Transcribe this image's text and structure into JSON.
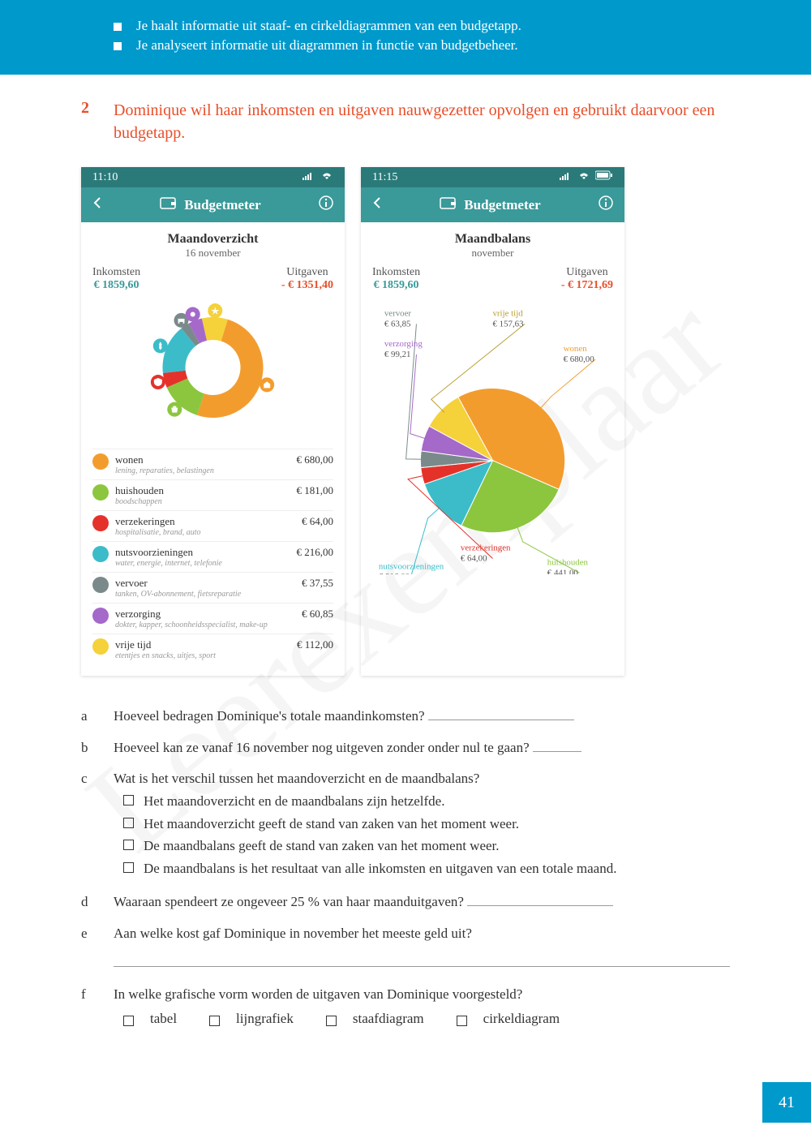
{
  "header": {
    "objectives": [
      "Je haalt informatie uit staaf- en cirkeldiagrammen van een budgetapp.",
      "Je analyseert informatie uit diagrammen in functie van budgetbeheer."
    ]
  },
  "exercise": {
    "number": "2",
    "prompt": "Dominique wil haar inkomsten en uitgaven nauwgezetter opvolgen en gebruikt daarvoor een budgetapp."
  },
  "phone1": {
    "time": "11:10",
    "app_title": "Budgetmeter",
    "title": "Maandoverzicht",
    "subtitle": "16 november",
    "income_label": "Inkomsten",
    "income_value": "€ 1859,60",
    "expense_label": "Uitgaven",
    "expense_value": "- € 1351,40",
    "chart": {
      "type": "donut",
      "background_color": "#ffffff",
      "inner_radius": 0.55,
      "slices": [
        {
          "label": "wonen",
          "value": 680.0,
          "color": "#f39c2e"
        },
        {
          "label": "huishouden",
          "value": 181.0,
          "color": "#8cc63f"
        },
        {
          "label": "verzekeringen",
          "value": 64.0,
          "color": "#e4322b"
        },
        {
          "label": "nutsvoorzieningen",
          "value": 216.0,
          "color": "#3cbcc9"
        },
        {
          "label": "vervoer",
          "value": 37.55,
          "color": "#7a8a8a"
        },
        {
          "label": "verzorging",
          "value": 60.85,
          "color": "#a569c9"
        },
        {
          "label": "vrije tijd",
          "value": 112.0,
          "color": "#f5d13a"
        }
      ]
    },
    "categories": [
      {
        "name": "wonen",
        "sub": "lening, reparaties, belastingen",
        "value": "€ 680,00",
        "color": "#f39c2e"
      },
      {
        "name": "huishouden",
        "sub": "boodschappen",
        "value": "€ 181,00",
        "color": "#8cc63f"
      },
      {
        "name": "verzekeringen",
        "sub": "hospitalisatie, brand, auto",
        "value": "€ 64,00",
        "color": "#e4322b"
      },
      {
        "name": "nutsvoorzieningen",
        "sub": "water, energie, internet, telefonie",
        "value": "€ 216,00",
        "color": "#3cbcc9"
      },
      {
        "name": "vervoer",
        "sub": "tanken, OV-abonnement, fietsreparatie",
        "value": "€ 37,55",
        "color": "#7a8a8a"
      },
      {
        "name": "verzorging",
        "sub": "dokter, kapper, schoonheidsspecialist, make-up",
        "value": "€ 60,85",
        "color": "#a569c9"
      },
      {
        "name": "vrije tijd",
        "sub": "etentjes en snacks, uitjes, sport",
        "value": "€ 112,00",
        "color": "#f5d13a"
      }
    ]
  },
  "phone2": {
    "time": "11:15",
    "app_title": "Budgetmeter",
    "title": "Maandbalans",
    "subtitle": "november",
    "income_label": "Inkomsten",
    "income_value": "€ 1859,60",
    "expense_label": "Uitgaven",
    "expense_value": "- € 1721,69",
    "chart": {
      "type": "pie",
      "background_color": "#ffffff",
      "slices": [
        {
          "label": "wonen",
          "value": 680.0,
          "color": "#f39c2e",
          "callout": "wonen\n€ 680,00"
        },
        {
          "label": "huishouden",
          "value": 441.0,
          "color": "#8cc63f",
          "callout": "huishouden\n€ 441,00"
        },
        {
          "label": "nutsvoorzieningen",
          "value": 216.0,
          "color": "#3cbcc9",
          "callout": "nutsvoorzieningen\n€ 216,00"
        },
        {
          "label": "verzekeringen",
          "value": 64.0,
          "color": "#e4322b",
          "callout": "verzekeringen\n€ 64,00"
        },
        {
          "label": "vervoer",
          "value": 63.85,
          "color": "#7a8a8a",
          "callout": "vervoer\n€ 63,85"
        },
        {
          "label": "verzorging",
          "value": 99.21,
          "color": "#a569c9",
          "callout": "verzorging\n€ 99,21"
        },
        {
          "label": "vrije tijd",
          "value": 157.63,
          "color": "#f5d13a",
          "callout": "vrije tijd\n€ 157,63"
        }
      ]
    }
  },
  "questions": {
    "a": "Hoeveel bedragen Dominique's totale maandinkomsten?",
    "b": "Hoeveel kan ze vanaf 16 november nog uitgeven zonder onder nul te gaan?",
    "c": "Wat is het verschil tussen het maandoverzicht en de maandbalans?",
    "c_opts": [
      "Het maandoverzicht en de maandbalans zijn hetzelfde.",
      "Het maandoverzicht geeft de stand van zaken van het moment weer.",
      "De maandbalans geeft de stand van zaken van het moment weer.",
      "De maandbalans is het resultaat van alle inkomsten en uitgaven van een totale maand."
    ],
    "d": "Waaraan spendeert ze ongeveer 25 % van haar maanduitgaven?",
    "e": "Aan welke kost gaf Dominique in november het meeste geld uit?",
    "f": "In welke grafische vorm worden de uitgaven van Dominique voorgesteld?",
    "f_opts": [
      "tabel",
      "lijngrafiek",
      "staafdiagram",
      "cirkeldiagram"
    ]
  },
  "pagenum": "41",
  "watermark": "Leerexemplaar"
}
